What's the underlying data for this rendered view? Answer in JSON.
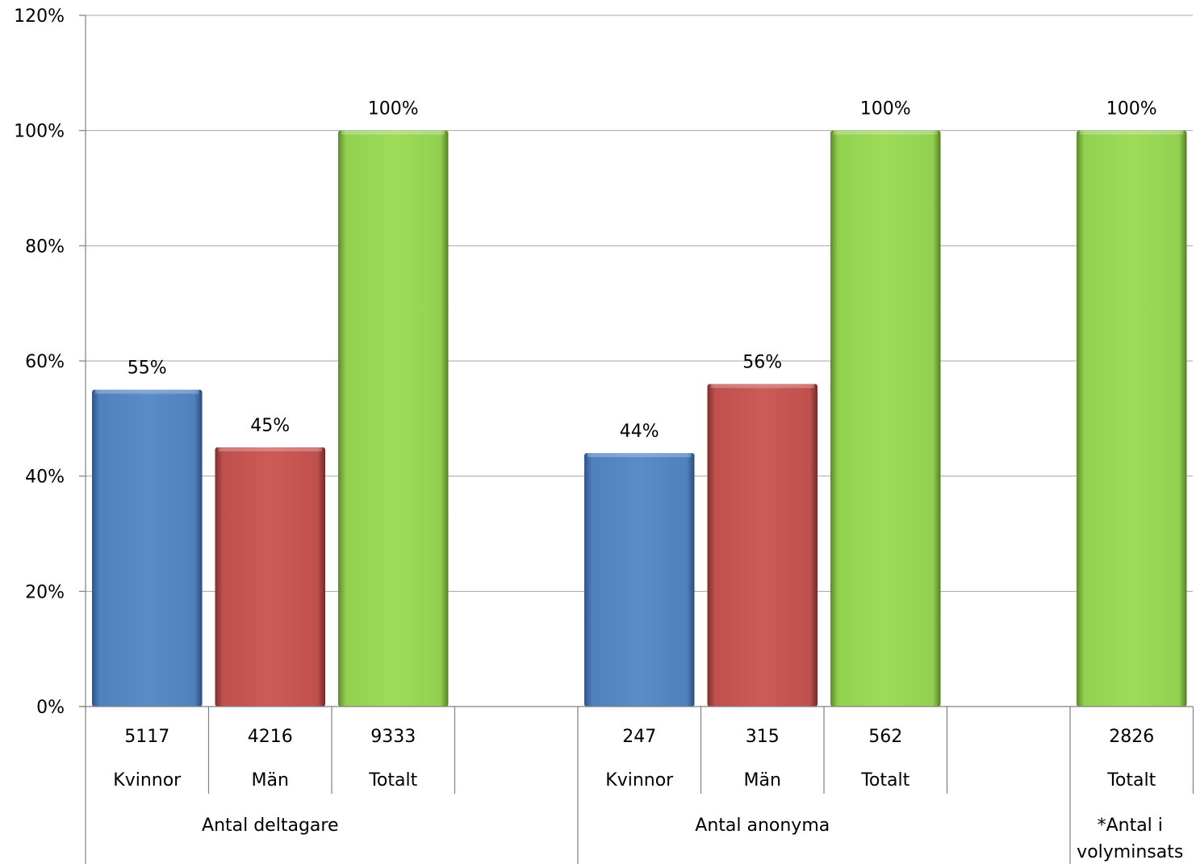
{
  "chart_data": {
    "type": "bar",
    "ylim": [
      0,
      1.2
    ],
    "y_ticks": [
      "0%",
      "20%",
      "40%",
      "60%",
      "80%",
      "100%",
      "120%"
    ],
    "grid": true,
    "legend": "none",
    "colors": {
      "Kvinnor": "#4f81bd",
      "Män": "#c0504d",
      "Totalt": "#92d050"
    },
    "bars": [
      {
        "group": "Antal deltagare",
        "category": "Kvinnor",
        "count": "5117",
        "value": 0.55,
        "label": "55%"
      },
      {
        "group": "Antal deltagare",
        "category": "Män",
        "count": "4216",
        "value": 0.45,
        "label": "45%"
      },
      {
        "group": "Antal deltagare",
        "category": "Totalt",
        "count": "9333",
        "value": 1.0,
        "label": "100%"
      },
      {
        "group": "Antal anonyma",
        "category": "Kvinnor",
        "count": "247",
        "value": 0.44,
        "label": "44%"
      },
      {
        "group": "Antal anonyma",
        "category": "Män",
        "count": "315",
        "value": 0.56,
        "label": "56%"
      },
      {
        "group": "Antal anonyma",
        "category": "Totalt",
        "count": "562",
        "value": 1.0,
        "label": "100%"
      },
      {
        "group": "*Antal i volyminsats",
        "category": "Totalt",
        "count": "2826",
        "value": 1.0,
        "label": "100%"
      }
    ],
    "groups": [
      {
        "label_lines": [
          "Antal deltagare"
        ]
      },
      {
        "label_lines": [
          "Antal anonyma"
        ]
      },
      {
        "label_lines": [
          "*Antal i",
          "volyminsats"
        ]
      }
    ]
  }
}
